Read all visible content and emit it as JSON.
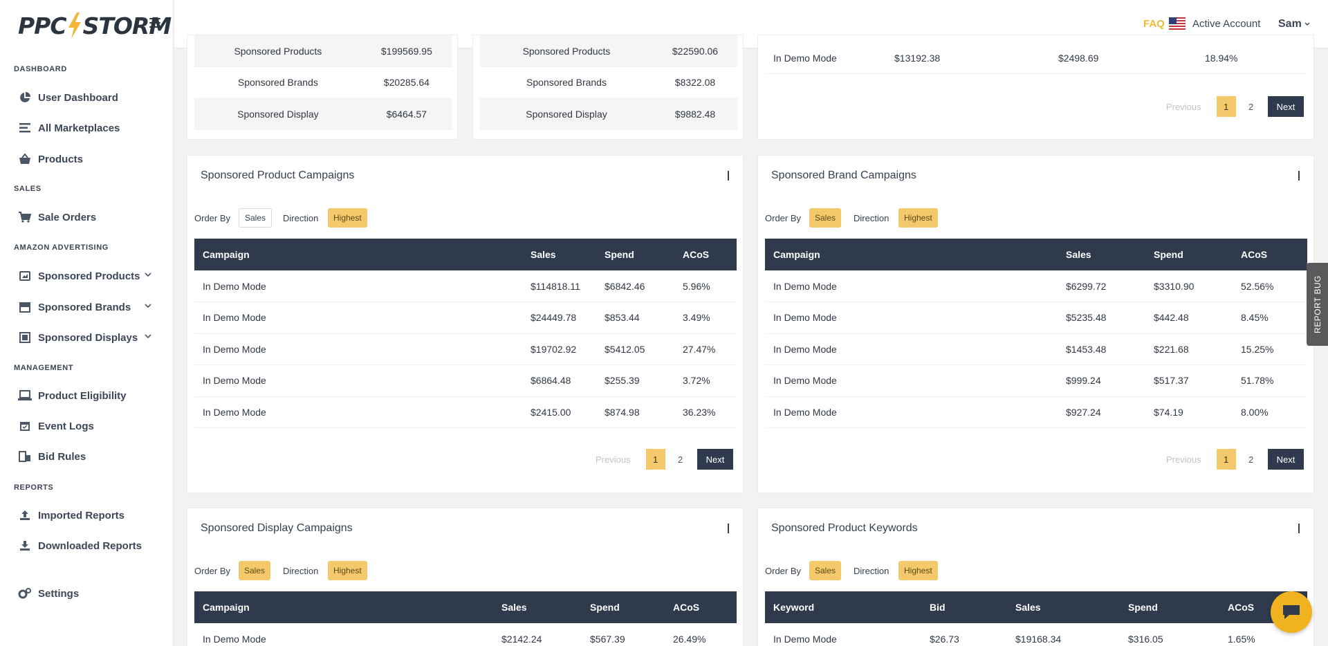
{
  "brand": {
    "logo_left": "PPC",
    "logo_right": "STORM",
    "accent": "#f4c96b",
    "dark": "#2f3b4d"
  },
  "sidebar": {
    "sections": [
      {
        "label": "DASHBOARD"
      },
      {
        "label": "SALES"
      },
      {
        "label": "AMAZON ADVERTISING"
      },
      {
        "label": "MANAGEMENT"
      },
      {
        "label": "REPORTS"
      }
    ],
    "items": [
      {
        "label": "User Dashboard",
        "icon": "pie-chart-icon"
      },
      {
        "label": "All Marketplaces",
        "icon": "list-icon"
      },
      {
        "label": "Products",
        "icon": "basket-icon"
      },
      {
        "label": "Sale Orders",
        "icon": "cart-icon"
      },
      {
        "label": "Sponsored Products",
        "icon": "ad-icon"
      },
      {
        "label": "Sponsored Brands",
        "icon": "store-icon"
      },
      {
        "label": "Sponsored Displays",
        "icon": "display-icon"
      },
      {
        "label": "Product Eligibility",
        "icon": "laptop-icon"
      },
      {
        "label": "Event Logs",
        "icon": "calendar-icon"
      },
      {
        "label": "Bid Rules",
        "icon": "rules-icon"
      },
      {
        "label": "Imported Reports",
        "icon": "upload-icon"
      },
      {
        "label": "Downloaded Reports",
        "icon": "download-icon"
      },
      {
        "label": "Settings",
        "icon": "gears-icon"
      }
    ]
  },
  "header": {
    "faq": "FAQ",
    "account": "Active Account",
    "user": "Sam"
  },
  "top_cards": {
    "left": [
      [
        "Sponsored Products",
        "$199569.95"
      ],
      [
        "Sponsored Brands",
        "$20285.64"
      ],
      [
        "Sponsored Display",
        "$6464.57"
      ]
    ],
    "mid": [
      [
        "Sponsored Products",
        "$22590.06"
      ],
      [
        "Sponsored Brands",
        "$8322.08"
      ],
      [
        "Sponsored Display",
        "$9882.48"
      ]
    ],
    "right_row": [
      "In Demo Mode",
      "$13192.38",
      "$2498.69",
      "18.94%"
    ]
  },
  "controls": {
    "order_by": "Order By",
    "direction": "Direction",
    "sales": "Sales",
    "highest": "Highest"
  },
  "pager": {
    "previous": "Previous",
    "p1": "1",
    "p2": "2",
    "next": "Next"
  },
  "spc": {
    "title": "Sponsored Product Campaigns",
    "headers": [
      "Campaign",
      "Sales",
      "Spend",
      "ACoS"
    ],
    "rows": [
      [
        "In Demo Mode",
        "$114818.11",
        "$6842.46",
        "5.96%"
      ],
      [
        "In Demo Mode",
        "$24449.78",
        "$853.44",
        "3.49%"
      ],
      [
        "In Demo Mode",
        "$19702.92",
        "$5412.05",
        "27.47%"
      ],
      [
        "In Demo Mode",
        "$6864.48",
        "$255.39",
        "3.72%"
      ],
      [
        "In Demo Mode",
        "$2415.00",
        "$874.98",
        "36.23%"
      ]
    ]
  },
  "sbc": {
    "title": "Sponsored Brand Campaigns",
    "headers": [
      "Campaign",
      "Sales",
      "Spend",
      "ACoS"
    ],
    "rows": [
      [
        "In Demo Mode",
        "$6299.72",
        "$3310.90",
        "52.56%"
      ],
      [
        "In Demo Mode",
        "$5235.48",
        "$442.48",
        "8.45%"
      ],
      [
        "In Demo Mode",
        "$1453.48",
        "$221.68",
        "15.25%"
      ],
      [
        "In Demo Mode",
        "$999.24",
        "$517.37",
        "51.78%"
      ],
      [
        "In Demo Mode",
        "$927.24",
        "$74.19",
        "8.00%"
      ]
    ]
  },
  "sdc": {
    "title": "Sponsored Display Campaigns",
    "headers": [
      "Campaign",
      "Sales",
      "Spend",
      "ACoS"
    ],
    "rows": [
      [
        "In Demo Mode",
        "$2142.24",
        "$567.39",
        "26.49%"
      ]
    ]
  },
  "spk": {
    "title": "Sponsored Product Keywords",
    "headers": [
      "Keyword",
      "Bid",
      "Sales",
      "Spend",
      "ACoS"
    ],
    "rows": [
      [
        "In Demo Mode",
        "$26.73",
        "$19168.34",
        "$316.05",
        "1.65%"
      ]
    ]
  },
  "report_bug": "REPORT BUG"
}
